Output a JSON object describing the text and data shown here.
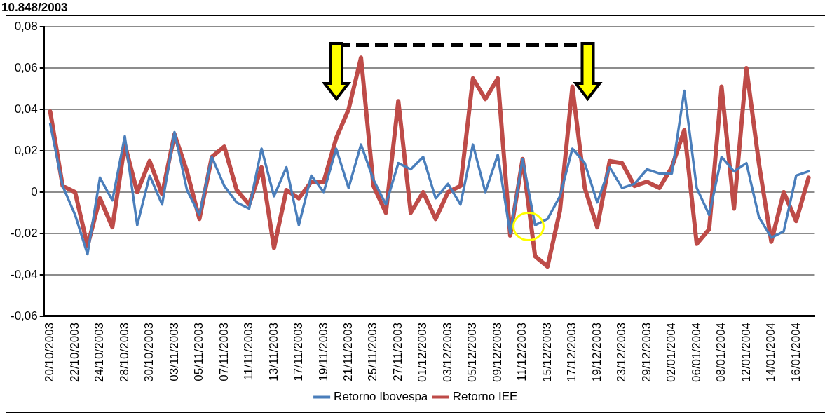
{
  "chart_data": {
    "type": "line",
    "title": "10.848/2003",
    "categories": [
      "20/10/2003",
      null,
      "22/10/2003",
      null,
      "24/10/2003",
      null,
      "28/10/2003",
      null,
      "30/10/2003",
      null,
      "03/11/2003",
      null,
      "05/11/2003",
      null,
      "07/11/2003",
      null,
      "11/11/2003",
      null,
      "13/11/2003",
      null,
      "17/11/2003",
      null,
      "19/11/2003",
      null,
      "21/11/2003",
      null,
      "25/11/2003",
      null,
      "27/11/2003",
      null,
      "01/12/2003",
      null,
      "03/12/2003",
      null,
      "05/12/2003",
      null,
      "09/12/2003",
      null,
      "11/12/2003",
      null,
      "15/12/2003",
      null,
      "17/12/2003",
      null,
      "19/12/2003",
      null,
      "23/12/2003",
      null,
      "29/12/2003",
      null,
      "02/01/2004",
      null,
      "06/01/2004",
      null,
      "08/01/2004",
      null,
      "12/01/2004",
      null,
      "14/01/2004",
      null,
      "16/01/2004",
      null
    ],
    "series": [
      {
        "name": "Retorno Ibovespa",
        "color": "#4a7ebb",
        "values": [
          0.033,
          0.003,
          -0.011,
          -0.03,
          0.007,
          -0.004,
          0.027,
          -0.016,
          0.008,
          -0.006,
          0.029,
          0.001,
          -0.011,
          0.017,
          0.003,
          -0.005,
          -0.008,
          0.021,
          -0.002,
          0.012,
          -0.016,
          0.008,
          0.0,
          0.021,
          0.002,
          0.023,
          0.006,
          -0.006,
          0.014,
          0.011,
          0.017,
          -0.003,
          0.004,
          -0.006,
          0.023,
          0.0,
          0.018,
          -0.02,
          0.016,
          -0.016,
          -0.013,
          -0.002,
          0.021,
          0.014,
          -0.005,
          0.012,
          0.002,
          0.004,
          0.011,
          0.009,
          0.009,
          0.049,
          0.002,
          -0.011,
          0.017,
          0.01,
          0.014,
          -0.012,
          -0.022,
          -0.019,
          0.008,
          0.01
        ]
      },
      {
        "name": "Retorno IEE",
        "color": "#be4b48",
        "values": [
          0.039,
          0.003,
          0.0,
          -0.026,
          -0.003,
          -0.017,
          0.023,
          0.0,
          0.015,
          -0.001,
          0.028,
          0.01,
          -0.013,
          0.017,
          0.022,
          0.001,
          -0.006,
          0.012,
          -0.027,
          0.001,
          -0.003,
          0.005,
          0.005,
          0.026,
          0.04,
          0.065,
          0.003,
          -0.01,
          0.044,
          -0.01,
          0.0,
          -0.013,
          0.0,
          0.003,
          0.055,
          0.045,
          0.055,
          -0.021,
          0.016,
          -0.031,
          -0.036,
          -0.009,
          0.051,
          0.002,
          -0.017,
          0.015,
          0.014,
          0.003,
          0.005,
          0.002,
          0.012,
          0.03,
          -0.025,
          -0.018,
          0.051,
          -0.008,
          0.06,
          0.014,
          -0.024,
          0.0,
          -0.014,
          0.007
        ]
      }
    ],
    "ylim": [
      -0.06,
      0.08
    ],
    "yticks": [
      {
        "value": -0.06,
        "label": "-0,06"
      },
      {
        "value": -0.04,
        "label": "-0,04"
      },
      {
        "value": -0.02,
        "label": "-0,02"
      },
      {
        "value": 0,
        "label": "0"
      },
      {
        "value": 0.02,
        "label": "0,02"
      },
      {
        "value": 0.04,
        "label": "0,04"
      },
      {
        "value": 0.06,
        "label": "0,06"
      },
      {
        "value": 0.08,
        "label": "0,08"
      }
    ],
    "grid": "y",
    "legend": "bottom",
    "marker": "none",
    "line_style": "solid"
  }
}
